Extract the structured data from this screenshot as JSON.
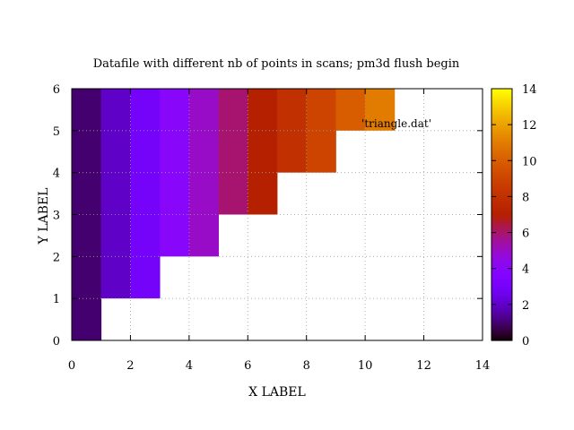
{
  "chart_data": {
    "type": "heatmap",
    "title": "Datafile with different nb of points in scans; pm3d flush begin",
    "xlabel": "X LABEL",
    "ylabel": "Y LABEL",
    "xlim": [
      0,
      14
    ],
    "ylim": [
      0,
      6
    ],
    "xticks": [
      0,
      2,
      4,
      6,
      8,
      10,
      12,
      14
    ],
    "yticks": [
      0,
      1,
      2,
      3,
      4,
      5,
      6
    ],
    "grid": true,
    "legend": {
      "label": "'triangle.dat'",
      "position": "top-right"
    },
    "colorbar": {
      "range": [
        0,
        14
      ],
      "ticks": [
        0,
        2,
        4,
        6,
        8,
        10,
        12,
        14
      ],
      "palette": "black-blue-violet-red-orange-yellow"
    },
    "cells": [
      {
        "x0": 0,
        "x1": 1,
        "y0": 0,
        "y1": 6,
        "value": 1
      },
      {
        "x0": 1,
        "x1": 2,
        "y0": 1,
        "y1": 6,
        "value": 2
      },
      {
        "x0": 2,
        "x1": 3,
        "y0": 1,
        "y1": 6,
        "value": 3
      },
      {
        "x0": 3,
        "x1": 4,
        "y0": 2,
        "y1": 6,
        "value": 4
      },
      {
        "x0": 4,
        "x1": 5,
        "y0": 2,
        "y1": 6,
        "value": 5
      },
      {
        "x0": 5,
        "x1": 6,
        "y0": 3,
        "y1": 6,
        "value": 6
      },
      {
        "x0": 6,
        "x1": 7,
        "y0": 3,
        "y1": 6,
        "value": 7
      },
      {
        "x0": 7,
        "x1": 8,
        "y0": 4,
        "y1": 6,
        "value": 8
      },
      {
        "x0": 8,
        "x1": 9,
        "y0": 4,
        "y1": 6,
        "value": 9
      },
      {
        "x0": 9,
        "x1": 10,
        "y0": 5,
        "y1": 6,
        "value": 10
      },
      {
        "x0": 10,
        "x1": 11,
        "y0": 5,
        "y1": 6,
        "value": 11
      }
    ]
  }
}
